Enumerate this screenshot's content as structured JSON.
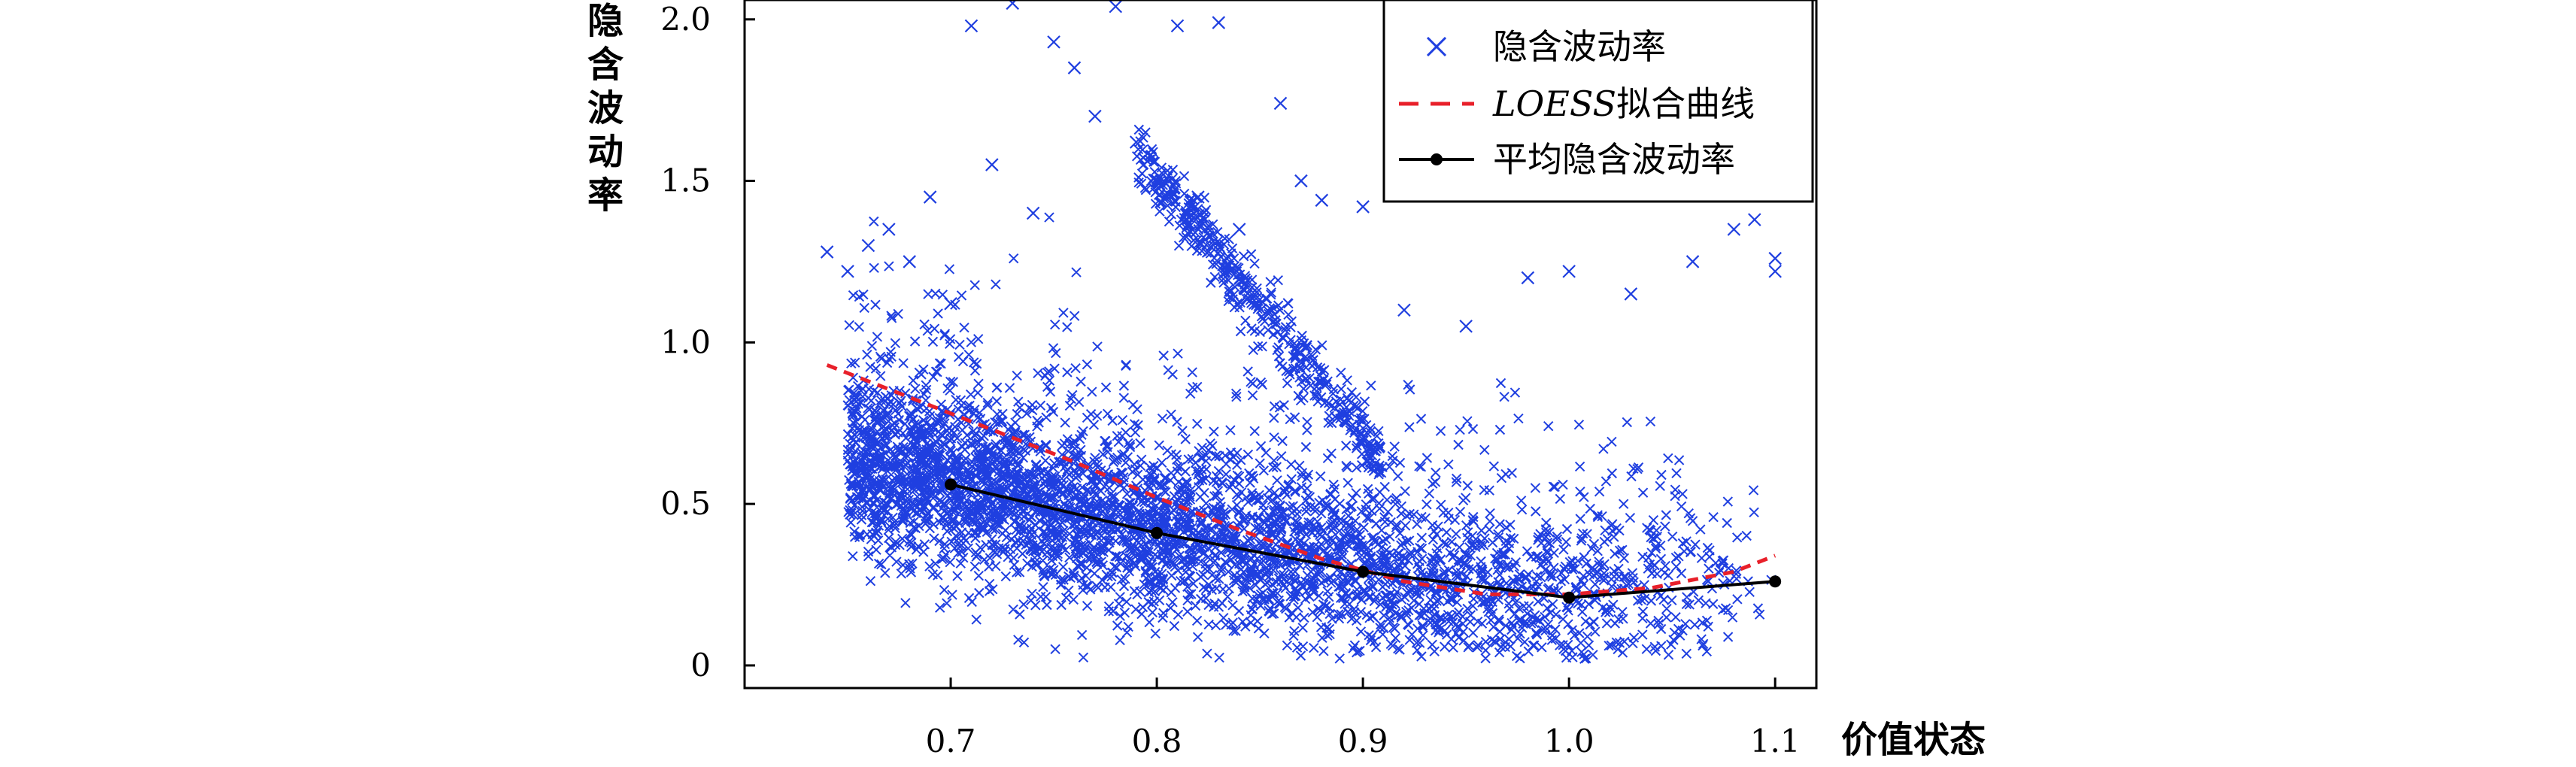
{
  "chart_data": {
    "type": "scatter",
    "title": "",
    "xlabel": "价值状态",
    "ylabel": "隐含波动率",
    "xlim": [
      0.6,
      1.12
    ],
    "ylim": [
      -0.07,
      2.06
    ],
    "xticks": [
      0.7,
      0.8,
      0.9,
      1.0,
      1.1
    ],
    "xtick_labels": [
      "0.7",
      "0.8",
      "0.9",
      "1.0",
      "1.1"
    ],
    "yticks": [
      0,
      0.5,
      1.0,
      1.5,
      2.0
    ],
    "ytick_labels": [
      "0",
      "0.5",
      "1.0",
      "1.5",
      "2.0"
    ],
    "legend_position": "top-right",
    "series": [
      {
        "name": "隐含波动率",
        "kind": "scatter",
        "marker": "x",
        "color": "#1f3fe0",
        "description": "dense cloud of ~ thousands of observations; implied volatility vs moneyness",
        "points": [
          [
            0.64,
            1.28
          ],
          [
            0.65,
            1.22
          ],
          [
            0.66,
            1.3
          ],
          [
            0.67,
            1.35
          ],
          [
            0.68,
            1.25
          ],
          [
            0.69,
            1.45
          ],
          [
            0.7,
            1.12
          ],
          [
            0.71,
            1.98
          ],
          [
            0.72,
            1.55
          ],
          [
            0.73,
            2.05
          ],
          [
            0.74,
            1.4
          ],
          [
            0.75,
            1.93
          ],
          [
            0.76,
            1.85
          ],
          [
            0.77,
            1.7
          ],
          [
            0.78,
            2.04
          ],
          [
            0.79,
            1.62
          ],
          [
            0.8,
            1.5
          ],
          [
            0.81,
            1.98
          ],
          [
            0.82,
            1.45
          ],
          [
            0.83,
            1.99
          ],
          [
            0.84,
            1.35
          ],
          [
            0.86,
            1.74
          ],
          [
            0.87,
            1.5
          ],
          [
            0.88,
            1.44
          ],
          [
            0.9,
            1.42
          ],
          [
            0.92,
            1.1
          ],
          [
            0.95,
            1.05
          ],
          [
            0.98,
            1.2
          ],
          [
            1.0,
            1.22
          ],
          [
            1.03,
            1.15
          ],
          [
            1.06,
            1.25
          ],
          [
            1.08,
            1.35
          ],
          [
            1.09,
            1.38
          ],
          [
            1.1,
            1.26
          ],
          [
            1.1,
            1.22
          ]
        ]
      },
      {
        "name": "LOESS拟合曲线",
        "name_italic": "LOESS",
        "name_rest": "拟合曲线",
        "kind": "line",
        "style": "dashed",
        "color": "#e8202a",
        "x": [
          0.64,
          0.68,
          0.72,
          0.76,
          0.8,
          0.84,
          0.88,
          0.92,
          0.96,
          1.0,
          1.04,
          1.08,
          1.1
        ],
        "y": [
          0.93,
          0.83,
          0.73,
          0.63,
          0.52,
          0.42,
          0.33,
          0.26,
          0.22,
          0.22,
          0.24,
          0.29,
          0.34
        ]
      },
      {
        "name": "平均隐含波动率",
        "kind": "line",
        "style": "solid",
        "marker": "o",
        "color": "#000000",
        "x": [
          0.7,
          0.8,
          0.9,
          1.0,
          1.1
        ],
        "y": [
          0.56,
          0.41,
          0.29,
          0.21,
          0.26
        ]
      }
    ]
  }
}
